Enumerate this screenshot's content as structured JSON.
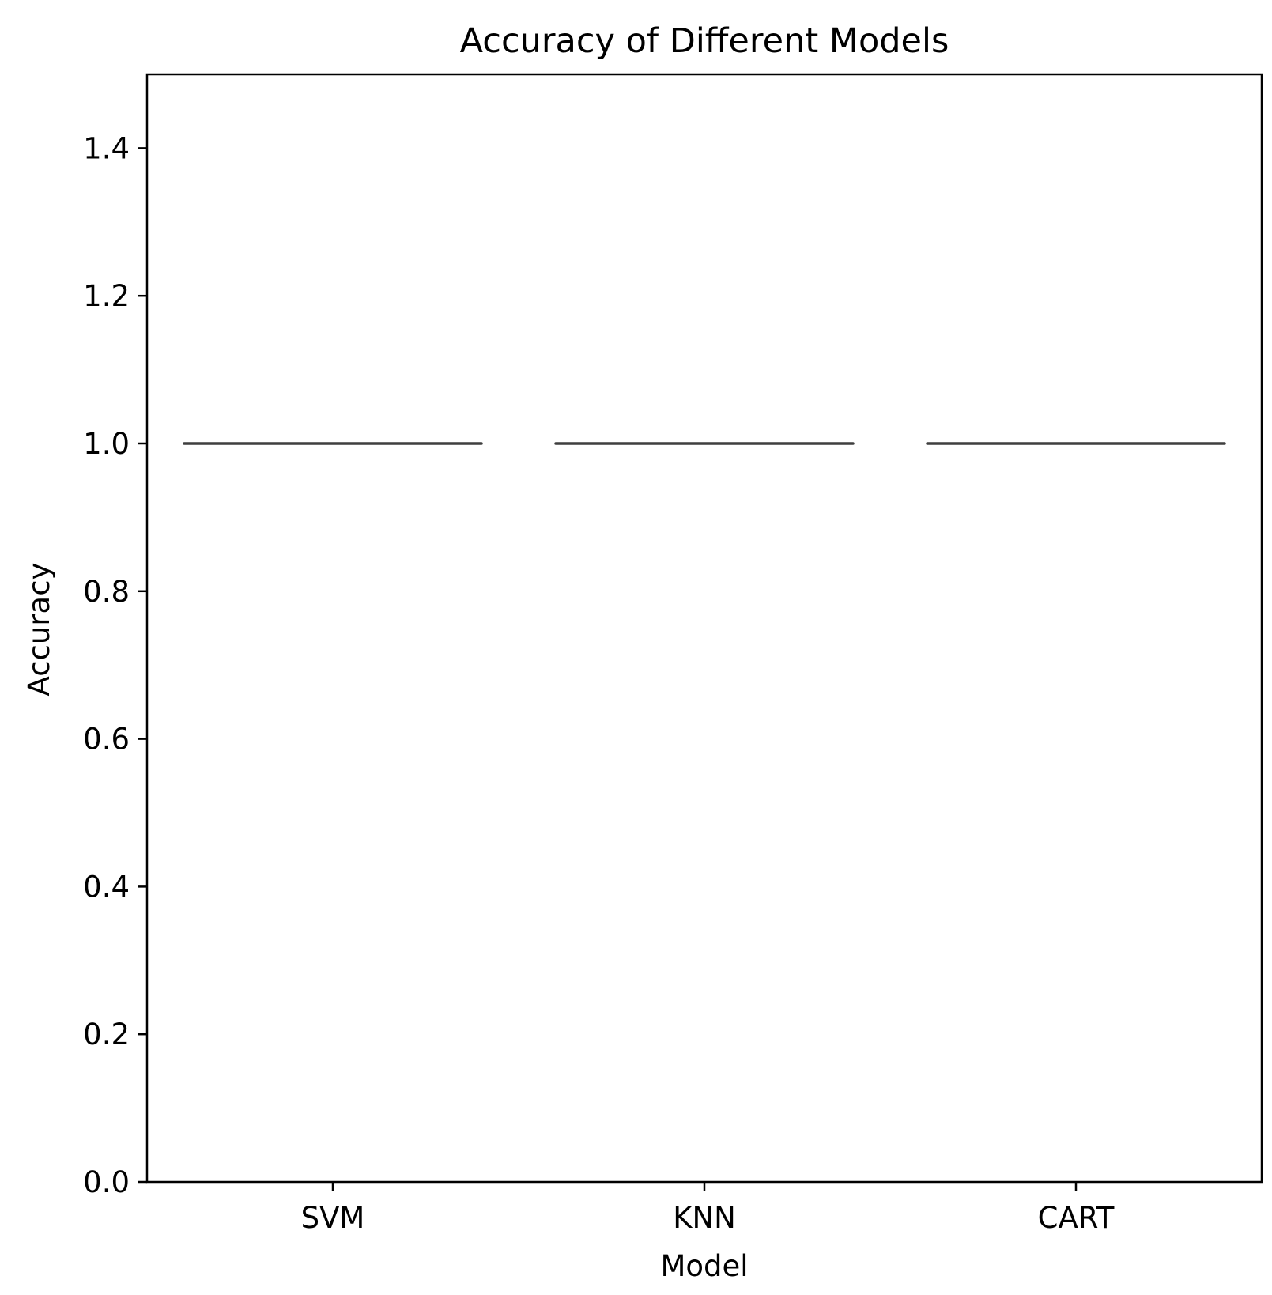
{
  "chart_data": {
    "type": "box",
    "title": "Accuracy of Different Models",
    "xlabel": "Model",
    "ylabel": "Accuracy",
    "categories": [
      "SVM",
      "KNN",
      "CART"
    ],
    "series": [
      {
        "values": [
          1.0,
          1.0,
          1.0
        ]
      }
    ],
    "box_stats": [
      {
        "category": "SVM",
        "min": 1.0,
        "q1": 1.0,
        "median": 1.0,
        "q3": 1.0,
        "max": 1.0
      },
      {
        "category": "KNN",
        "min": 1.0,
        "q1": 1.0,
        "median": 1.0,
        "q3": 1.0,
        "max": 1.0
      },
      {
        "category": "CART",
        "min": 1.0,
        "q1": 1.0,
        "median": 1.0,
        "q3": 1.0,
        "max": 1.0
      }
    ],
    "ylim": [
      0,
      1.5
    ],
    "yticks": [
      0.0,
      0.2,
      0.4,
      0.6,
      0.8,
      1.0,
      1.2,
      1.4
    ],
    "ytick_labels": [
      "0.0",
      "0.2",
      "0.4",
      "0.6",
      "0.8",
      "1.0",
      "1.2",
      "1.4"
    ],
    "grid": false,
    "line_color": "#3f3f3f"
  }
}
